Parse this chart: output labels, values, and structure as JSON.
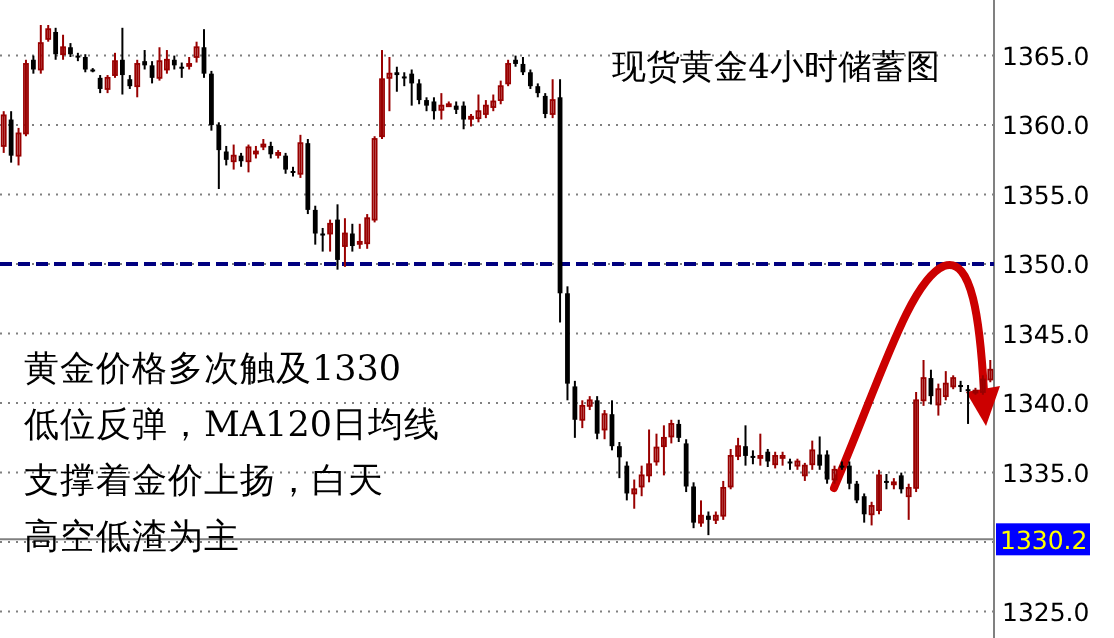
{
  "chart_data": {
    "type": "candlestick",
    "title": "现货黄金4小时储蓄图",
    "annotations": [
      "黄金价格多次触及1330",
      "低位反弹，MA120日均线",
      "支撑着金价上扬，白天",
      "高空低渣为主"
    ],
    "categories": [
      null,
      null,
      null,
      null,
      null,
      null,
      null,
      null,
      null,
      null,
      null,
      null,
      null,
      null,
      null,
      null,
      null,
      null,
      null,
      null,
      null,
      null,
      null,
      null,
      null,
      null,
      null,
      null,
      null,
      null,
      null,
      null,
      null,
      null,
      null,
      null,
      null,
      null,
      null,
      null,
      null,
      null,
      null,
      null,
      null,
      null,
      null,
      null,
      null,
      null,
      null,
      null,
      null,
      null,
      null,
      null,
      null,
      null,
      null,
      null,
      null,
      null,
      null,
      null,
      null,
      null,
      null,
      null,
      null,
      null,
      null,
      null,
      null,
      null,
      null,
      null,
      null,
      null,
      null,
      null,
      null,
      null,
      null,
      null,
      null,
      null,
      null,
      null,
      null,
      null,
      null,
      null,
      null,
      null,
      null,
      null,
      null,
      null,
      null,
      null,
      null,
      null,
      null,
      null,
      null,
      null,
      null,
      null,
      null,
      null,
      null,
      null,
      null,
      null,
      null,
      null,
      null,
      null,
      null,
      null,
      null,
      null,
      null,
      null,
      null,
      null,
      null,
      null,
      null,
      null,
      null,
      null,
      null,
      null
    ],
    "ohlc": [
      [
        1358.5,
        1361,
        1358,
        1360.7
      ],
      [
        1360.4,
        1361,
        1357.3,
        1357.8
      ],
      [
        1357.8,
        1359.8,
        1357.1,
        1359.4
      ],
      [
        1359.4,
        1364.7,
        1359.2,
        1364.4
      ],
      [
        1364.7,
        1365,
        1363.7,
        1364.0
      ],
      [
        1364,
        1367.2,
        1363.7,
        1365.9
      ],
      [
        1366.2,
        1367.2,
        1366,
        1366.9
      ],
      [
        1366.7,
        1367,
        1364.7,
        1365.1
      ],
      [
        1365.1,
        1366.5,
        1364.7,
        1365.6
      ],
      [
        1365.6,
        1365.9,
        1364.9,
        1365.1
      ],
      [
        1365,
        1365.2,
        1364.6,
        1364.9
      ],
      [
        1364.9,
        1365.1,
        1363.8,
        1364
      ],
      [
        1364,
        1364.1,
        1363.8,
        1363.9
      ],
      [
        1363.4,
        1363.6,
        1362.3,
        1362.6
      ],
      [
        1362.6,
        1363.6,
        1362.3,
        1363.4
      ],
      [
        1363.6,
        1365.2,
        1363.4,
        1364.6
      ],
      [
        1364.7,
        1367,
        1362.2,
        1363.6
      ],
      [
        1363.3,
        1363.6,
        1362.6,
        1362.8
      ],
      [
        1362.8,
        1364.7,
        1362,
        1364.4
      ],
      [
        1364.6,
        1365.4,
        1364,
        1364.3
      ],
      [
        1364.3,
        1364.6,
        1363,
        1363.4
      ],
      [
        1363.4,
        1365.6,
        1363.2,
        1364.6
      ],
      [
        1364,
        1365.4,
        1363.7,
        1364.7
      ],
      [
        1364.7,
        1365,
        1364,
        1364.3
      ],
      [
        1364.2,
        1364.5,
        1363.4,
        1364.1
      ],
      [
        1364.3,
        1364.9,
        1364,
        1364.4
      ],
      [
        1364.9,
        1366,
        1364.5,
        1365.6
      ],
      [
        1365.6,
        1366.9,
        1363.4,
        1363.7
      ],
      [
        1363.7,
        1363.9,
        1359.6,
        1360
      ],
      [
        1360,
        1360.2,
        1355.4,
        1358.2
      ],
      [
        1358.1,
        1358.5,
        1357.1,
        1357.5
      ],
      [
        1357.4,
        1358.6,
        1356.8,
        1357.8
      ],
      [
        1357.8,
        1358,
        1357,
        1357.4
      ],
      [
        1357.4,
        1358.6,
        1356.6,
        1358.4
      ],
      [
        1358,
        1358.5,
        1357.6,
        1358.1
      ],
      [
        1358.5,
        1359,
        1358.2,
        1358.6
      ],
      [
        1358.5,
        1358.8,
        1357.6,
        1357.9
      ],
      [
        1357.9,
        1358.2,
        1357.6,
        1358
      ],
      [
        1357.8,
        1358,
        1356.5,
        1356.8
      ],
      [
        1356.7,
        1357,
        1356.3,
        1356.6
      ],
      [
        1356.5,
        1359.3,
        1356.2,
        1358.7
      ],
      [
        1358.7,
        1359,
        1353.6,
        1353.9
      ],
      [
        1353.9,
        1354.2,
        1351.4,
        1352.2
      ],
      [
        1352.2,
        1352.6,
        1350.9,
        1352.1
      ],
      [
        1352.2,
        1353.2,
        1350.9,
        1352.9
      ],
      [
        1353.2,
        1354.3,
        1349.6,
        1350.3
      ],
      [
        1351.3,
        1353.3,
        1349.8,
        1352.2
      ],
      [
        1352.2,
        1352.9,
        1350.9,
        1351.3
      ],
      [
        1351.5,
        1352.9,
        1351.1,
        1351.6
      ],
      [
        1351.5,
        1353.6,
        1351.1,
        1353.3
      ],
      [
        1353.2,
        1359.2,
        1353,
        1359
      ],
      [
        1359.2,
        1365.4,
        1359,
        1363.3
      ],
      [
        1363.4,
        1364.9,
        1361,
        1363.7
      ],
      [
        1363.8,
        1364.2,
        1362.4,
        1363.6
      ],
      [
        1363.5,
        1363.8,
        1362.8,
        1363.4
      ],
      [
        1363.7,
        1364,
        1361.4,
        1363
      ],
      [
        1363,
        1363.3,
        1361.5,
        1361.8
      ],
      [
        1361.8,
        1362,
        1361,
        1361.4
      ],
      [
        1361.7,
        1362,
        1360.4,
        1361
      ],
      [
        1361.1,
        1362.3,
        1360.4,
        1361.4
      ],
      [
        1361.4,
        1361.7,
        1361.3,
        1361.5
      ],
      [
        1361.4,
        1361.7,
        1360.8,
        1361.1
      ],
      [
        1361.4,
        1361.7,
        1359.7,
        1360.4
      ],
      [
        1360.5,
        1360.8,
        1359.9,
        1360.6
      ],
      [
        1360.5,
        1362.2,
        1360.2,
        1361
      ],
      [
        1360.8,
        1361.8,
        1360.5,
        1361.4
      ],
      [
        1361.3,
        1362.2,
        1361,
        1361.7
      ],
      [
        1361.8,
        1363.2,
        1361.5,
        1362.8
      ],
      [
        1363,
        1364.7,
        1362.8,
        1364.4
      ],
      [
        1364.7,
        1365,
        1364.2,
        1364.4
      ],
      [
        1364.4,
        1364.9,
        1363.6,
        1363.8
      ],
      [
        1363.8,
        1364,
        1362.6,
        1362.8
      ],
      [
        1362.8,
        1363,
        1362,
        1362.3
      ],
      [
        1362.1,
        1362.3,
        1360.5,
        1360.8
      ],
      [
        1360.8,
        1363.3,
        1360.5,
        1361.8
      ],
      [
        1362,
        1363.3,
        1345.8,
        1347.9
      ],
      [
        1347.9,
        1348.4,
        1340.2,
        1341.4
      ],
      [
        1341.2,
        1341.6,
        1337.5,
        1338.8
      ],
      [
        1338.8,
        1340.2,
        1338.2,
        1339.8
      ],
      [
        1339.8,
        1340.5,
        1339.5,
        1340.2
      ],
      [
        1340.2,
        1340.5,
        1337.4,
        1337.8
      ],
      [
        1338.1,
        1339.5,
        1337.4,
        1339.2
      ],
      [
        1339.2,
        1340.2,
        1336.6,
        1336.9
      ],
      [
        1336.9,
        1337.2,
        1334.6,
        1336.1
      ],
      [
        1335.5,
        1335.8,
        1333,
        1333.5
      ],
      [
        1333.5,
        1334.5,
        1332.4,
        1333.8
      ],
      [
        1334,
        1335.5,
        1333.3,
        1334.8
      ],
      [
        1334.8,
        1338.1,
        1334.3,
        1335.6
      ],
      [
        1335.8,
        1337.8,
        1335.5,
        1336.8
      ],
      [
        1336.9,
        1338.4,
        1334.8,
        1337.5
      ],
      [
        1337.6,
        1338.8,
        1337.1,
        1338.5
      ],
      [
        1338.5,
        1338.8,
        1337.2,
        1337.5
      ],
      [
        1337.1,
        1337.4,
        1333.6,
        1334
      ],
      [
        1334,
        1334.3,
        1331,
        1331.4
      ],
      [
        1331.4,
        1333,
        1331.1,
        1331.9
      ],
      [
        1331.9,
        1332.2,
        1330.5,
        1331.6
      ],
      [
        1331.6,
        1332.2,
        1331.3,
        1331.9
      ],
      [
        1331.9,
        1334.4,
        1331.6,
        1333.9
      ],
      [
        1334,
        1336.7,
        1333.8,
        1336.2
      ],
      [
        1336.2,
        1337.5,
        1335.9,
        1336.9
      ],
      [
        1336.9,
        1338.4,
        1335.5,
        1336.2
      ],
      [
        1336.2,
        1336.6,
        1335.6,
        1336.1
      ],
      [
        1336.1,
        1337.8,
        1335.5,
        1336.2
      ],
      [
        1336.5,
        1336.7,
        1335.4,
        1335.8
      ],
      [
        1335.6,
        1336.5,
        1335.3,
        1336.2
      ],
      [
        1336.1,
        1336.5,
        1335.5,
        1336.2
      ],
      [
        1335.8,
        1336,
        1335.2,
        1335.7
      ],
      [
        1335.5,
        1336,
        1335.2,
        1335.8
      ],
      [
        1334.8,
        1335.7,
        1334.4,
        1335.5
      ],
      [
        1335.6,
        1337.3,
        1335.2,
        1336.6
      ],
      [
        1336.3,
        1337.6,
        1335.2,
        1335.5
      ],
      [
        1336.3,
        1336.6,
        1334.2,
        1334.5
      ],
      [
        1334.5,
        1335.5,
        1334.2,
        1335.2
      ],
      [
        1335.5,
        1335.8,
        1335.2,
        1335.4
      ],
      [
        1335.5,
        1335.8,
        1333.8,
        1334.2
      ],
      [
        1334.2,
        1334.4,
        1332.8,
        1333
      ],
      [
        1333.3,
        1333.5,
        1331.4,
        1332
      ],
      [
        1332,
        1332.9,
        1331.2,
        1332.6
      ],
      [
        1332.3,
        1335.2,
        1332,
        1334.8
      ],
      [
        1334.4,
        1334.9,
        1333.8,
        1334.3
      ],
      [
        1334.2,
        1334.6,
        1333.8,
        1334.3
      ],
      [
        1334.8,
        1335,
        1333.5,
        1333.8
      ],
      [
        1333.3,
        1334.2,
        1331.6,
        1333.9
      ],
      [
        1333.9,
        1340.8,
        1333.6,
        1340.2
      ],
      [
        1340.2,
        1343.1,
        1339.8,
        1341.8
      ],
      [
        1341.8,
        1342.4,
        1339.9,
        1340.5
      ],
      [
        1339.9,
        1341.4,
        1339.1,
        1341
      ],
      [
        1340.5,
        1342.3,
        1340.2,
        1341.4
      ],
      [
        1341.2,
        1342,
        1341,
        1341.8
      ],
      [
        1341.3,
        1341.6,
        1340.8,
        1341.2
      ],
      [
        1341,
        1341.3,
        1338.5,
        1340.9
      ],
      [
        1340.8,
        1341.1,
        1340.6,
        1340.9
      ],
      [
        1340.8,
        1342,
        1340.6,
        1341.7
      ],
      [
        1341.7,
        1343.1,
        1341.5,
        1342.4
      ]
    ],
    "ylim": [
      1323.1,
      1369
    ],
    "yticks": [
      {
        "value": 1325,
        "label": "1325.0"
      },
      {
        "value": 1330,
        "label": null
      },
      {
        "value": 1335,
        "label": "1335.0"
      },
      {
        "value": 1340,
        "label": "1340.0"
      },
      {
        "value": 1345,
        "label": "1345.0"
      },
      {
        "value": 1350,
        "label": "1350.0"
      },
      {
        "value": 1355,
        "label": "1355.0"
      },
      {
        "value": 1360,
        "label": "1360.0"
      },
      {
        "value": 1365,
        "label": "1365.0"
      }
    ],
    "grid": "y",
    "ref_lines": [
      {
        "axis": "y",
        "value": 1350,
        "color": "#000080",
        "line_style": "dashed"
      },
      {
        "axis": "y",
        "value": 1330.2,
        "label": "1330.2",
        "color": "#808080",
        "line_style": "solid"
      }
    ]
  }
}
